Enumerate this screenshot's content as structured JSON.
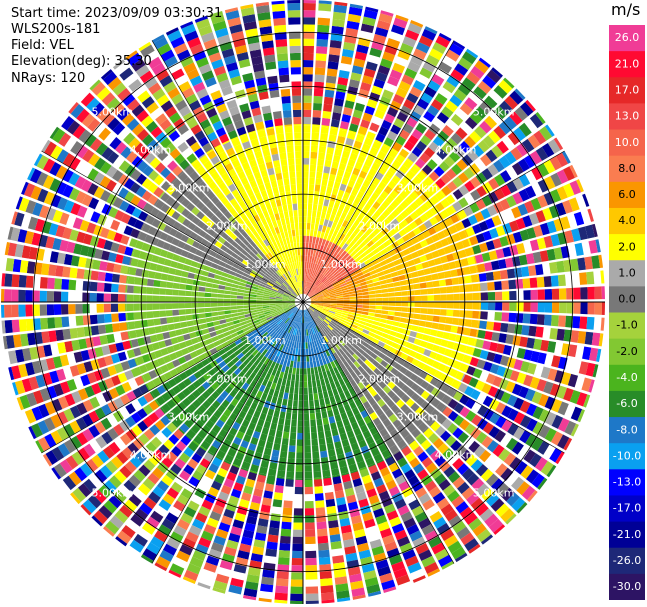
{
  "info": {
    "start_time": "Start time: 2023/09/09 03:30:31",
    "instrument": "WLS200s-181",
    "field": "Field: VEL",
    "elevation": "Elevation(deg): 35.30",
    "nrays": "NRays: 120"
  },
  "colorbar": {
    "unit": "m/s",
    "levels": [
      {
        "label": "26.0",
        "color": "#f03c96"
      },
      {
        "label": "21.0",
        "color": "#ff0a32"
      },
      {
        "label": "17.0",
        "color": "#e62828"
      },
      {
        "label": "13.0",
        "color": "#f04646"
      },
      {
        "label": "10.0",
        "color": "#f5644b"
      },
      {
        "label": "8.0",
        "color": "#fa7d50"
      },
      {
        "label": "6.0",
        "color": "#fa9600"
      },
      {
        "label": "4.0",
        "color": "#ffc800"
      },
      {
        "label": "2.0",
        "color": "#ffff00"
      },
      {
        "label": "1.0",
        "color": "#aaaaaa"
      },
      {
        "label": "0.0",
        "color": "#787878"
      },
      {
        "label": "-1.0",
        "color": "#a5d23c"
      },
      {
        "label": "-2.0",
        "color": "#82c832"
      },
      {
        "label": "-4.0",
        "color": "#4bb41e"
      },
      {
        "label": "-6.0",
        "color": "#288c28"
      },
      {
        "label": "-8.0",
        "color": "#1e78c8"
      },
      {
        "label": "-10.0",
        "color": "#0aa0f0"
      },
      {
        "label": "-13.0",
        "color": "#0000ff"
      },
      {
        "label": "-17.0",
        "color": "#0000c8"
      },
      {
        "label": "-21.0",
        "color": "#000096"
      },
      {
        "label": "-26.0",
        "color": "#1e2878"
      },
      {
        "label": "-30.0",
        "color": "#2d1464"
      }
    ]
  },
  "chart_data": {
    "type": "heatmap",
    "projection": "polar PPI",
    "field": "VEL",
    "unit": "m/s",
    "nrays": 120,
    "range_rings_km": [
      "1.00km",
      "2.00km",
      "3.00km",
      "4.00km",
      "5.00km"
    ],
    "max_range_km": 5.6,
    "valid_data_max_range_km": 3.3,
    "sectors": [
      {
        "azimuth_deg": [
          0,
          60
        ],
        "velocity_ms": 2.0,
        "near_velocity_ms": 10.0
      },
      {
        "azimuth_deg": [
          60,
          100
        ],
        "velocity_ms": 4.0,
        "near_velocity_ms": 6.0
      },
      {
        "azimuth_deg": [
          100,
          120
        ],
        "velocity_ms": 2.0
      },
      {
        "azimuth_deg": [
          120,
          150
        ],
        "velocity_ms": 0.0
      },
      {
        "azimuth_deg": [
          150,
          240
        ],
        "velocity_ms": -6.0,
        "near_velocity_ms": -8.0
      },
      {
        "azimuth_deg": [
          240,
          290
        ],
        "velocity_ms": -2.0
      },
      {
        "azimuth_deg": [
          290,
          320
        ],
        "velocity_ms": 0.0
      },
      {
        "azimuth_deg": [
          320,
          360
        ],
        "velocity_ms": 2.0
      }
    ],
    "beyond_valid_range": "noise (random velocities)"
  }
}
